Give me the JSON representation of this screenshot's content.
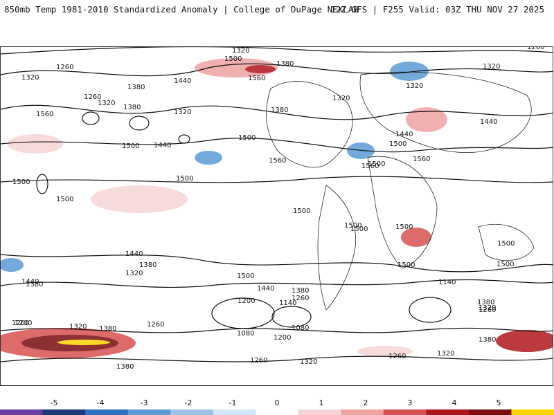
{
  "header": {
    "title_left": "850mb Temp 1981-2010 Standardized Anomaly | College of DuPage NEXLAB",
    "title_right": "12Z GFS | F255 Valid: 03Z THU NOV 27 2025"
  },
  "colorbar": {
    "labels": [
      "-5",
      "-4",
      "-3",
      "-2",
      "-1",
      "0",
      "1",
      "2",
      "3",
      "4",
      "5"
    ],
    "colors": [
      "#6b3fa0",
      "#1f3a7a",
      "#2f6fbf",
      "#5b9bd5",
      "#9cc3e6",
      "#d4e6f5",
      "#ffffff",
      "#f6d3d3",
      "#eea3a3",
      "#d6524f",
      "#b0171b",
      "#7a0c10",
      "#ffd400"
    ]
  },
  "contour_labels": [
    "1320",
    "1500",
    "1380",
    "1260",
    "1320",
    "1440",
    "1560",
    "1380",
    "1320",
    "1320",
    "1260",
    "1320",
    "1260",
    "1380",
    "1320",
    "1380",
    "1320",
    "1560",
    "1500",
    "1440",
    "1500",
    "1440",
    "1500",
    "1560",
    "1560",
    "1440",
    "1500",
    "1560",
    "1500",
    "1500",
    "1500",
    "1500",
    "1500",
    "1500",
    "1500",
    "1500",
    "1500",
    "1440",
    "1380",
    "1320",
    "1500",
    "1440",
    "1440",
    "1380",
    "1500",
    "1380",
    "1260",
    "1200",
    "1140",
    "1080",
    "1200",
    "1140",
    "1320",
    "1260",
    "1380",
    "1320",
    "1200",
    "1080",
    "1260",
    "1320",
    "1380",
    "1380",
    "1260",
    "1320",
    "1260",
    "1200",
    "1380"
  ]
}
